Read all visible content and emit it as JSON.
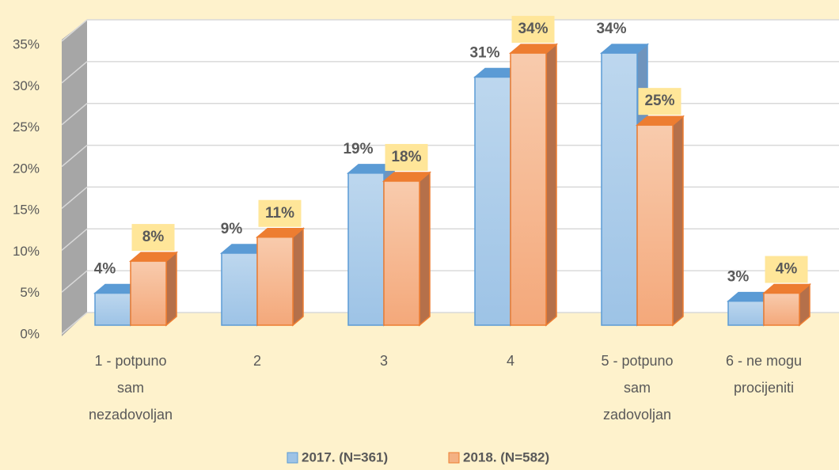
{
  "chart_data": {
    "type": "bar",
    "categories": [
      "1 - potpuno sam nezadovoljan",
      "2",
      "3",
      "4",
      "5 - potpuno sam zadovoljan",
      "6 - ne mogu procijeniti"
    ],
    "series": [
      {
        "name": "2017. (N=361)",
        "color": "#9dc3e6",
        "values": [
          4,
          9,
          19,
          31,
          34,
          3
        ],
        "value_labels": [
          "4%",
          "9%",
          "19%",
          "31%",
          "34%",
          "3%"
        ]
      },
      {
        "name": "2018. (N=582)",
        "color": "#f4b183",
        "values": [
          8,
          11,
          18,
          34,
          25,
          4
        ],
        "value_labels": [
          "8%",
          "11%",
          "18%",
          "34%",
          "25%",
          "4%"
        ]
      }
    ],
    "ylim": [
      0,
      35
    ],
    "yticks": [
      {
        "value": 0,
        "label": "0%"
      },
      {
        "value": 5,
        "label": "5%"
      },
      {
        "value": 10,
        "label": "10%"
      },
      {
        "value": 15,
        "label": "15%"
      },
      {
        "value": 20,
        "label": "20%"
      },
      {
        "value": 25,
        "label": "25%"
      },
      {
        "value": 30,
        "label": "30%"
      },
      {
        "value": 35,
        "label": "35%"
      }
    ],
    "grid": true,
    "legend": "bottom"
  }
}
